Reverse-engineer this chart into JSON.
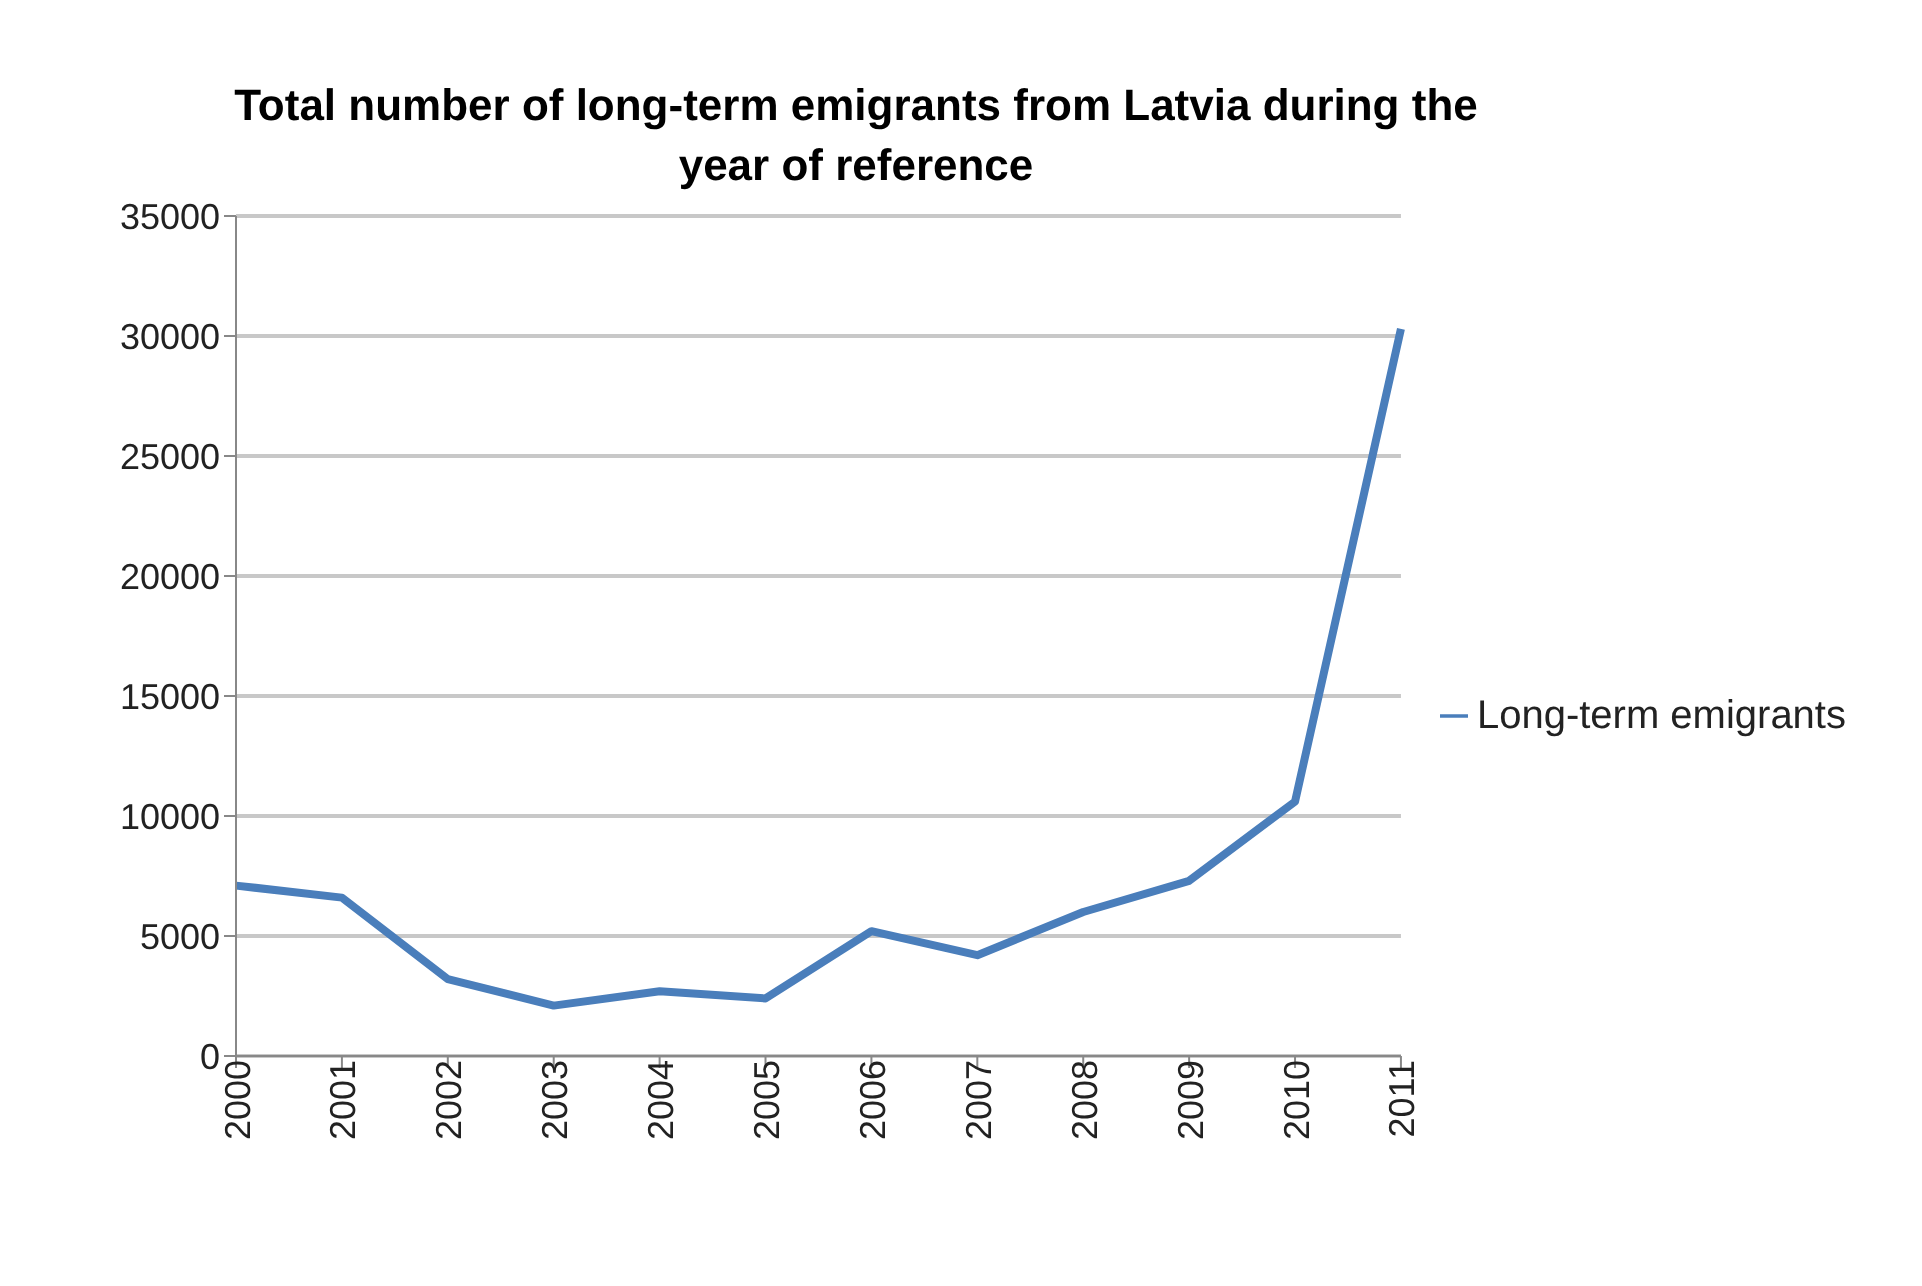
{
  "chart_data": {
    "type": "line",
    "title": "Total number of long-term emigrants from Latvia during the year of reference",
    "categories": [
      "2000",
      "2001",
      "2002",
      "2003",
      "2004",
      "2005",
      "2006",
      "2007",
      "2008",
      "2009",
      "2010",
      "2011"
    ],
    "series": [
      {
        "name": "Long-term emigrants",
        "color": "#4a7ebb",
        "values": [
          7100,
          6600,
          3200,
          2100,
          2700,
          2400,
          5200,
          4200,
          6000,
          7300,
          10600,
          30300
        ]
      }
    ],
    "ylim": [
      0,
      35000
    ],
    "yticks": [
      0,
      5000,
      10000,
      15000,
      20000,
      25000,
      30000,
      35000
    ],
    "grid": "y",
    "legend": "right",
    "marker": "none",
    "line_style": "solid"
  }
}
